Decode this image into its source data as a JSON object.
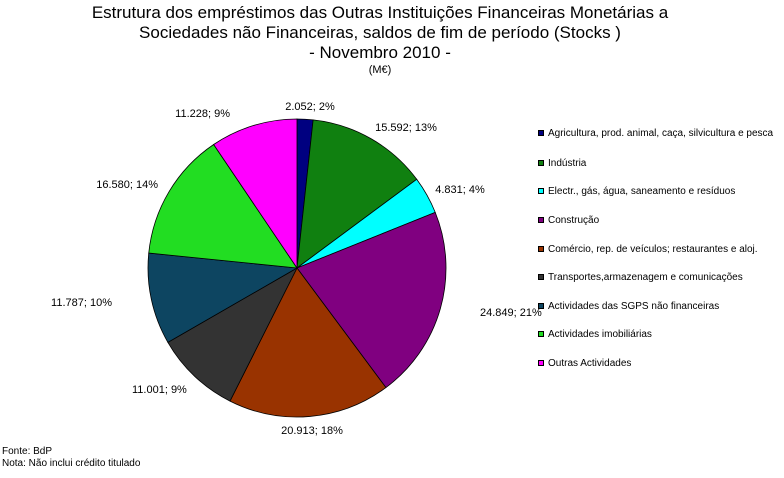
{
  "chart_data": {
    "type": "pie",
    "title_lines": [
      "Estrutura dos empréstimos das Outras Instituições Financeiras Monetárias a",
      "Sociedades não Financeiras, saldos de fim de período (Stocks )",
      "- Novembro 2010 -"
    ],
    "unit": "(M€)",
    "slices": [
      {
        "name": "Agricultura, prod. animal, caça, silvicultura e pesca",
        "value": 2052,
        "label": "2.052; 2%",
        "color": "#000080"
      },
      {
        "name": "Indústria",
        "value": 15592,
        "label": "15.592; 13%",
        "color": "#108010"
      },
      {
        "name": "Electr., gás, água, saneamento e resíduos",
        "value": 4831,
        "label": "4.831; 4%",
        "color": "#00FFFF"
      },
      {
        "name": "Construção",
        "value": 24849,
        "label": "24.849; 21%",
        "color": "#800080"
      },
      {
        "name": "Comércio, rep. de veículos; restaurantes e aloj.",
        "value": 20913,
        "label": "20.913; 18%",
        "color": "#993300"
      },
      {
        "name": "Transportes,armazenagem e comunicações",
        "value": 11001,
        "label": "11.001; 9%",
        "color": "#333333"
      },
      {
        "name": "Actividades das SGPS não financeiras",
        "value": 11787,
        "label": "11.787; 10%",
        "color": "#0D4561"
      },
      {
        "name": "Actividades imobiliárias",
        "value": 16580,
        "label": "16.580; 14%",
        "color": "#22DD22"
      },
      {
        "name": "Outras Actividades",
        "value": 11228,
        "label": "11.228; 9%",
        "color": "#FF00FF"
      }
    ],
    "legend_position": "right",
    "start_angle": "12 o'clock",
    "direction": "clockwise"
  },
  "footer": {
    "source": "Fonte: BdP",
    "note": "Nota: Não inclui crédito titulado"
  }
}
